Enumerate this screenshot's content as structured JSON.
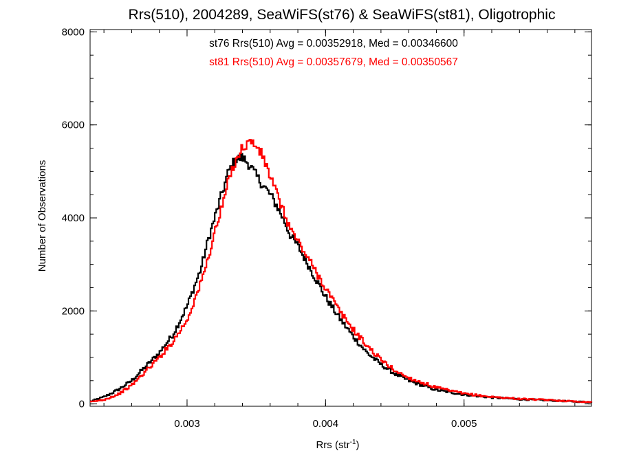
{
  "chart_data": {
    "type": "line",
    "title": "Rrs(510), 2004289, SeaWiFS(st76) & SeaWiFS(st81), Oligotrophic",
    "xlabel_main": "Rrs (str",
    "xlabel_sup": "-1",
    "xlabel_close": ")",
    "ylabel": "Number of Observations",
    "xlim": [
      0.0023,
      0.00592
    ],
    "ylim": [
      -50,
      8050
    ],
    "x_ticks": [
      {
        "value": 0.003,
        "label": "0.003"
      },
      {
        "value": 0.004,
        "label": "0.004"
      },
      {
        "value": 0.005,
        "label": "0.005"
      }
    ],
    "y_ticks": [
      {
        "value": 0,
        "label": "0"
      },
      {
        "value": 2000,
        "label": "2000"
      },
      {
        "value": 4000,
        "label": "4000"
      },
      {
        "value": 6000,
        "label": "6000"
      },
      {
        "value": 8000,
        "label": "8000"
      }
    ],
    "x_minor_step": 0.0002,
    "y_minor_step": 500,
    "grid": false,
    "step_style": "histogram",
    "annotations": [
      {
        "text": "st76 Rrs(510) Avg = 0.00352918, Med = 0.00346600",
        "color": "#000000"
      },
      {
        "text": "st81 Rrs(510) Avg = 0.00357679, Med = 0.00350567",
        "color": "#ff0000"
      }
    ],
    "series": [
      {
        "color": "#000000",
        "x": [
          0.0023,
          0.0024,
          0.0025,
          0.0026,
          0.0027,
          0.0028,
          0.0029,
          0.003,
          0.0031,
          0.00315,
          0.0032,
          0.00325,
          0.0033,
          0.00335,
          0.0034,
          0.00345,
          0.0035,
          0.00355,
          0.0036,
          0.00365,
          0.0037,
          0.00375,
          0.0038,
          0.0039,
          0.004,
          0.0041,
          0.0042,
          0.0043,
          0.0044,
          0.0045,
          0.0046,
          0.0048,
          0.005,
          0.0052,
          0.0054,
          0.0056,
          0.0058,
          0.00592
        ],
        "y": [
          50,
          150,
          300,
          500,
          800,
          1100,
          1500,
          2100,
          2900,
          3500,
          4000,
          4500,
          5000,
          5250,
          5300,
          5150,
          4900,
          4700,
          4500,
          4250,
          3950,
          3600,
          3400,
          2850,
          2300,
          1850,
          1450,
          1100,
          850,
          650,
          500,
          300,
          200,
          140,
          100,
          80,
          50,
          40
        ]
      },
      {
        "color": "#ff0000",
        "x": [
          0.0023,
          0.0024,
          0.0025,
          0.0026,
          0.0027,
          0.0028,
          0.0029,
          0.003,
          0.0031,
          0.00315,
          0.0032,
          0.00325,
          0.0033,
          0.00335,
          0.0034,
          0.00345,
          0.0035,
          0.00355,
          0.0036,
          0.00365,
          0.0037,
          0.00375,
          0.0038,
          0.0039,
          0.004,
          0.0041,
          0.0042,
          0.0043,
          0.0044,
          0.0045,
          0.0046,
          0.0048,
          0.005,
          0.0052,
          0.0054,
          0.0056,
          0.0058,
          0.00592
        ],
        "y": [
          40,
          90,
          200,
          400,
          700,
          1000,
          1350,
          1800,
          2600,
          3100,
          3700,
          4200,
          4800,
          5250,
          5500,
          5650,
          5550,
          5300,
          4900,
          4500,
          4100,
          3750,
          3500,
          3000,
          2500,
          2000,
          1600,
          1250,
          950,
          720,
          560,
          350,
          220,
          150,
          110,
          85,
          55,
          40
        ]
      }
    ]
  }
}
